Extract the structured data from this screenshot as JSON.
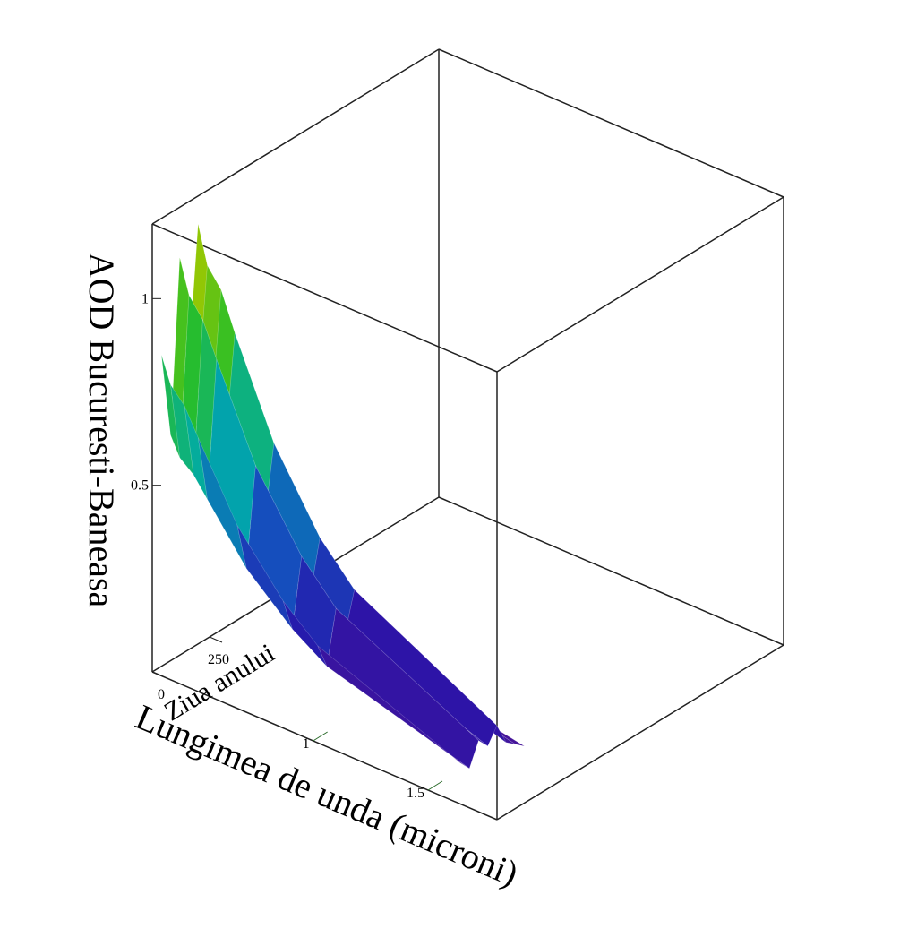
{
  "chart_data": {
    "type": "surface",
    "zlabel": "AOD Bucuresti-Baneasa",
    "xlabel": "Lungimea de unda (microni)",
    "ylabel": "Ziua anului",
    "x": [
      0.34,
      0.38,
      0.44,
      0.5,
      0.67,
      0.87,
      1.02,
      1.64
    ],
    "y": [
      0,
      40,
      80,
      120,
      160,
      200,
      240,
      280
    ],
    "z": [
      [
        0.86,
        0.79,
        0.75,
        0.68,
        0.49,
        0.34,
        0.26,
        0.11
      ],
      [
        0.63,
        0.58,
        0.55,
        0.5,
        0.36,
        0.25,
        0.19,
        0.08
      ],
      [
        1.09,
        1.0,
        0.95,
        0.86,
        0.62,
        0.43,
        0.33,
        0.14
      ],
      [
        0.81,
        0.74,
        0.7,
        0.63,
        0.46,
        0.32,
        0.25,
        0.11
      ],
      [
        1.15,
        1.05,
        1.0,
        0.9,
        0.65,
        0.45,
        0.35,
        0.15
      ],
      [
        0.69,
        0.63,
        0.6,
        0.54,
        0.39,
        0.27,
        0.21,
        0.09
      ],
      [
        0.52,
        0.47,
        0.45,
        0.41,
        0.29,
        0.2,
        0.16,
        0.07
      ],
      [
        0.4,
        0.37,
        0.35,
        0.32,
        0.23,
        0.16,
        0.12,
        0.05
      ]
    ],
    "xlim": [
      0.3,
      1.8
    ],
    "xticks": [
      1,
      1.5
    ],
    "ylim": [
      0,
      1250
    ],
    "yticks": [
      0,
      250
    ],
    "zlim": [
      0,
      1.2
    ],
    "zticks": [
      0.5,
      1
    ]
  }
}
